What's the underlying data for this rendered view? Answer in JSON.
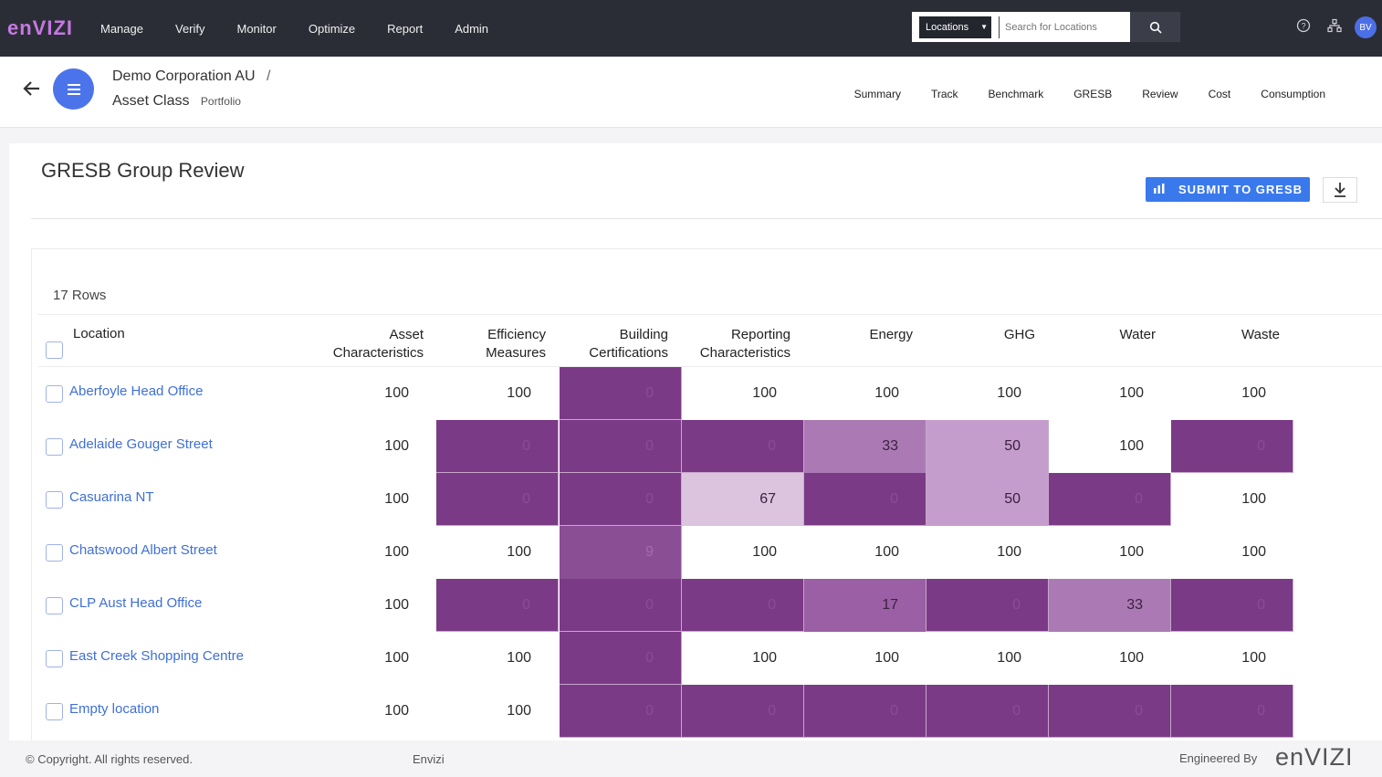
{
  "topbar": {
    "logo": "enVIZI",
    "nav": [
      "Manage",
      "Verify",
      "Monitor",
      "Optimize",
      "Report",
      "Admin"
    ],
    "search_select": "Locations",
    "search_placeholder": "Search for Locations",
    "avatar": "BV"
  },
  "breadcrumb": {
    "org": "Demo Corporation AU",
    "separator": "/",
    "group": "Asset Class",
    "group_type": "Portfolio"
  },
  "subtabs": [
    "Summary",
    "Track",
    "Benchmark",
    "GRESB",
    "Review",
    "Cost",
    "Consumption"
  ],
  "page": {
    "title": "GRESB Group Review",
    "submit_label": "SUBMIT TO GRESB",
    "rows_count": "17 Rows"
  },
  "table": {
    "headers": [
      {
        "line1": "Location",
        "line2": ""
      },
      {
        "line1": "Asset",
        "line2": "Characteristics"
      },
      {
        "line1": "Efficiency",
        "line2": "Measures"
      },
      {
        "line1": "Building",
        "line2": "Certifications"
      },
      {
        "line1": "Reporting",
        "line2": "Characteristics"
      },
      {
        "line1": "Energy",
        "line2": ""
      },
      {
        "line1": "GHG",
        "line2": ""
      },
      {
        "line1": "Water",
        "line2": ""
      },
      {
        "line1": "Waste",
        "line2": ""
      }
    ],
    "rows": [
      {
        "location": "Aberfoyle Head Office",
        "values": [
          100,
          100,
          0,
          100,
          100,
          100,
          100,
          100
        ]
      },
      {
        "location": "Adelaide Gouger Street",
        "values": [
          100,
          0,
          0,
          0,
          33,
          50,
          100,
          0
        ]
      },
      {
        "location": "Casuarina NT",
        "values": [
          100,
          0,
          0,
          67,
          0,
          50,
          0,
          100
        ]
      },
      {
        "location": "Chatswood Albert Street",
        "values": [
          100,
          100,
          9,
          100,
          100,
          100,
          100,
          100
        ]
      },
      {
        "location": "CLP Aust Head Office",
        "values": [
          100,
          0,
          0,
          0,
          17,
          0,
          33,
          0
        ]
      },
      {
        "location": "East Creek Shopping Centre",
        "values": [
          100,
          100,
          0,
          100,
          100,
          100,
          100,
          100
        ]
      },
      {
        "location": "Empty location",
        "values": [
          100,
          100,
          0,
          0,
          0,
          0,
          0,
          0
        ]
      }
    ]
  },
  "footer": {
    "copyright": "© Copyright. All rights reserved.",
    "product": "Envizi",
    "engineered_by": "Engineered By",
    "logo": "enVIZI"
  },
  "colors": {
    "heat_0": "#7b3a86",
    "heat_low": "#9a5fa4",
    "heat_mid": "#c59dcc",
    "heat_high": "#dcc4df",
    "link": "#3f6fd8",
    "primary_button": "#3a79ec"
  }
}
